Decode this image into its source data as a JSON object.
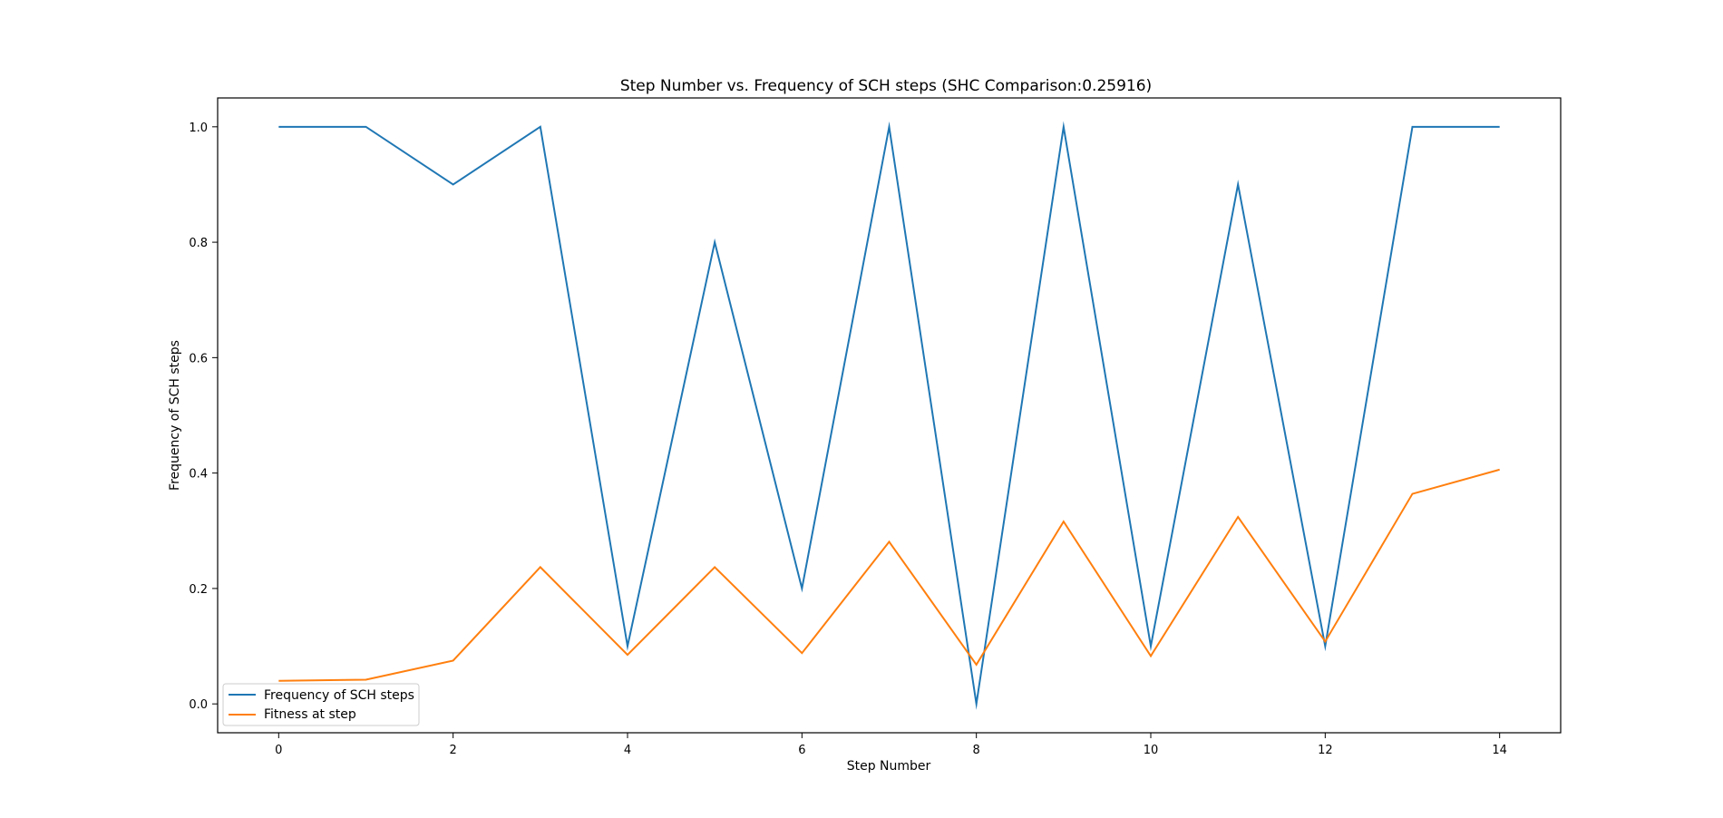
{
  "chart_data": {
    "type": "line",
    "title": "Step Number vs. Frequency of SCH steps (SHC Comparison:0.25916)",
    "xlabel": "Step Number",
    "ylabel": "Frequency of SCH steps",
    "xlim": [
      -0.7,
      14.7
    ],
    "ylim": [
      -0.05,
      1.05
    ],
    "xticks": [
      0,
      2,
      4,
      6,
      8,
      10,
      12,
      14
    ],
    "xtick_labels": [
      "0",
      "2",
      "4",
      "6",
      "8",
      "10",
      "12",
      "14"
    ],
    "yticks": [
      0.0,
      0.2,
      0.4,
      0.6,
      0.8,
      1.0
    ],
    "ytick_labels": [
      "0.0",
      "0.2",
      "0.4",
      "0.6",
      "0.8",
      "1.0"
    ],
    "x": [
      0,
      1,
      2,
      3,
      4,
      5,
      6,
      7,
      8,
      9,
      10,
      11,
      12,
      13,
      14
    ],
    "grid": false,
    "legend_position": "lower-left",
    "series": [
      {
        "name": "Frequency of SCH steps",
        "color": "#1f77b4",
        "values": [
          1.0,
          1.0,
          0.9,
          1.0,
          0.1,
          0.8,
          0.2,
          1.0,
          0.0,
          1.0,
          0.1,
          0.9,
          0.1,
          1.0,
          1.0
        ]
      },
      {
        "name": "Fitness at step",
        "color": "#ff7f0e",
        "values": [
          0.04,
          0.042,
          0.075,
          0.237,
          0.085,
          0.237,
          0.088,
          0.281,
          0.068,
          0.316,
          0.083,
          0.324,
          0.108,
          0.364,
          0.406
        ]
      }
    ]
  }
}
